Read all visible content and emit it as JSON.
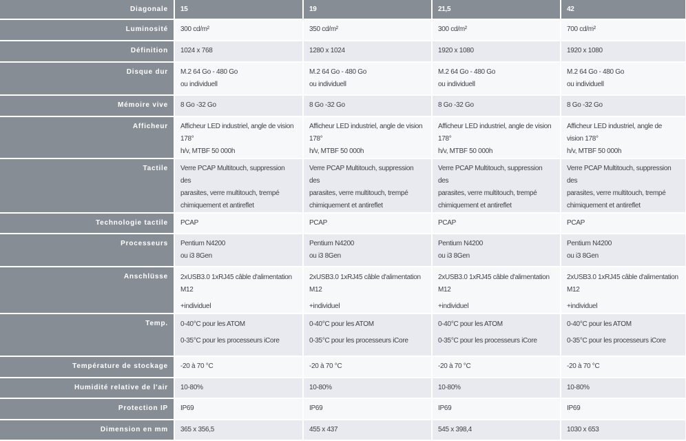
{
  "header": {
    "label": "Diagonale",
    "values": [
      "15",
      "19",
      "21,5",
      "42"
    ]
  },
  "rows": [
    {
      "label": "Luminosité",
      "values": [
        [
          "300 cd/m²"
        ],
        [
          "350 cd/m²"
        ],
        [
          "300 cd/m²"
        ],
        [
          "700 cd/m²"
        ]
      ]
    },
    {
      "label": "Définition",
      "values": [
        [
          "1024 x 768"
        ],
        [
          "1280 x 1024"
        ],
        [
          "1920 x 1080"
        ],
        [
          "1920 x 1080"
        ]
      ]
    },
    {
      "label": "Disque dur",
      "values": [
        [
          "M.2 64 Go - 480 Go",
          "ou individuell"
        ],
        [
          "M.2 64 Go - 480 Go",
          "ou individuell"
        ],
        [
          "M.2 64 Go - 480 Go",
          "ou individuell"
        ],
        [
          "M.2 64 Go - 480 Go",
          "ou individuell"
        ]
      ]
    },
    {
      "label": "Mémoire vive",
      "values": [
        [
          "8 Go -32 Go"
        ],
        [
          "8 Go -32 Go"
        ],
        [
          "8 Go -32 Go"
        ],
        [
          "8 Go -32 Go"
        ]
      ]
    },
    {
      "label": "Afficheur",
      "values": [
        [
          "Afficheur LED industriel, angle de vision 178°",
          "h/v, MTBF 50 000h"
        ],
        [
          "Afficheur LED industriel, angle de vision 178°",
          "h/v, MTBF 50 000h"
        ],
        [
          "Afficheur LED industriel, angle de vision 178°",
          "h/v, MTBF 50 000h"
        ],
        [
          "Afficheur LED industriel, angle de vision 178°",
          "h/v, MTBF 50 000h"
        ]
      ]
    },
    {
      "label": "Tactile",
      "values": [
        [
          "Verre PCAP Multitouch, suppression des",
          "parasites, verre multitouch, trempé",
          "chimiquement et antireflet"
        ],
        [
          "Verre PCAP Multitouch, suppression des",
          "parasites, verre multitouch, trempé",
          "chimiquement et antireflet"
        ],
        [
          "Verre PCAP Multitouch, suppression des",
          "parasites, verre multitouch, trempé",
          "chimiquement et antireflet"
        ],
        [
          "Verre PCAP Multitouch, suppression des",
          "parasites, verre multitouch, trempé",
          "chimiquement et antireflet"
        ]
      ]
    },
    {
      "label": "Technologie tactile",
      "values": [
        [
          "PCAP"
        ],
        [
          "PCAP"
        ],
        [
          "PCAP"
        ],
        [
          "PCAP"
        ]
      ]
    },
    {
      "label": "Processeurs",
      "values": [
        [
          "Pentium N4200",
          "ou i3 8Gen"
        ],
        [
          "Pentium N4200",
          "ou i3 8Gen"
        ],
        [
          "Pentium N4200",
          "ou i3 8Gen"
        ],
        [
          "Pentium N4200",
          "ou i3 8Gen"
        ]
      ]
    },
    {
      "label": "Anschlüsse",
      "gap": true,
      "values": [
        [
          "2xUSB3.0 1xRJ45 câble d'alimentation M12",
          "+individuel"
        ],
        [
          "2xUSB3.0 1xRJ45 câble d'alimentation M12",
          "+individuel"
        ],
        [
          "2xUSB3.0 1xRJ45 câble d'alimentation M12",
          "+individuel"
        ],
        [
          "2xUSB3.0 1xRJ45 câble d'alimentation M12",
          "+individuel"
        ]
      ]
    },
    {
      "label": "Temp.",
      "gap": true,
      "values": [
        [
          "0-40°C pour les ATOM",
          "0-35°C pour les processeurs iCore"
        ],
        [
          "0-40°C pour les ATOM",
          "0-35°C pour les processeurs iCore"
        ],
        [
          "0-40°C pour les ATOM",
          "0-35°C pour les processeurs iCore"
        ],
        [
          "0-40°C pour les ATOM",
          "0-35°C pour les processeurs iCore"
        ]
      ]
    },
    {
      "label": "Température de stockage",
      "values": [
        [
          "-20 à 70 °C"
        ],
        [
          "-20 à 70 °C"
        ],
        [
          "-20 à 70 °C"
        ],
        [
          "-20 à 70 °C"
        ]
      ]
    },
    {
      "label": "Humidité relative de l'air",
      "values": [
        [
          "10-80%"
        ],
        [
          "10-80%"
        ],
        [
          "10-80%"
        ],
        [
          "10-80%"
        ]
      ]
    },
    {
      "label": "Protection IP",
      "values": [
        [
          "IP69"
        ],
        [
          "IP69"
        ],
        [
          "IP69"
        ],
        [
          "IP69"
        ]
      ]
    },
    {
      "label": "Dimension en mm",
      "values": [
        [
          "365 x 356,5"
        ],
        [
          "455 x 437"
        ],
        [
          "545 x 398,4"
        ],
        [
          "1030 x 653"
        ]
      ]
    }
  ]
}
